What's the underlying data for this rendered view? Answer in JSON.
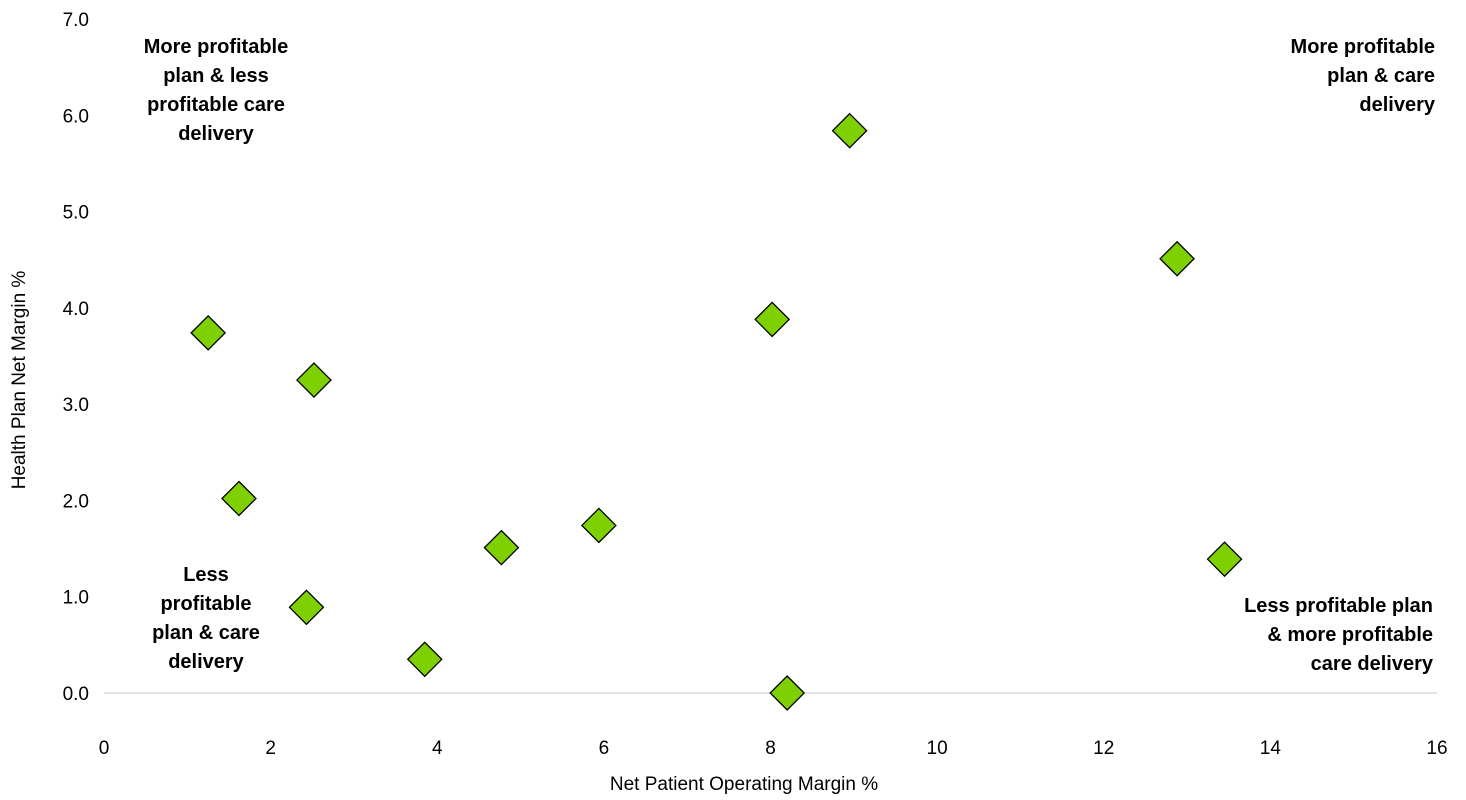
{
  "chart_data": {
    "type": "scatter",
    "title": "",
    "xlabel": "Net Patient Operating Margin %",
    "ylabel": "Health Plan Net Margin %",
    "xlim": [
      0,
      16
    ],
    "ylim": [
      0,
      7
    ],
    "x_ticks": [
      "0",
      "2",
      "4",
      "6",
      "8",
      "10",
      "12",
      "14",
      "16"
    ],
    "y_ticks": [
      "0.0",
      "1.0",
      "2.0",
      "3.0",
      "4.0",
      "5.0",
      "6.0",
      "7.0"
    ],
    "grid": false,
    "marker": "diamond",
    "marker_color": "#7FD000",
    "points": [
      {
        "x": 1.25,
        "y": 3.74
      },
      {
        "x": 1.62,
        "y": 2.02
      },
      {
        "x": 2.52,
        "y": 3.25
      },
      {
        "x": 2.43,
        "y": 0.89
      },
      {
        "x": 3.85,
        "y": 0.35
      },
      {
        "x": 4.77,
        "y": 1.51
      },
      {
        "x": 5.94,
        "y": 1.74
      },
      {
        "x": 8.02,
        "y": 3.88
      },
      {
        "x": 8.2,
        "y": 0.0
      },
      {
        "x": 8.95,
        "y": 5.84
      },
      {
        "x": 12.88,
        "y": 4.51
      },
      {
        "x": 13.45,
        "y": 1.39
      }
    ],
    "annotations": {
      "top_left": [
        "More profitable",
        "plan & less",
        "profitable care",
        "delivery"
      ],
      "top_right": [
        "More profitable",
        "plan & care",
        "delivery"
      ],
      "bottom_left": [
        "Less",
        "profitable",
        "plan & care",
        "delivery"
      ],
      "bottom_right": [
        "Less profitable plan",
        "& more profitable",
        "care delivery"
      ]
    }
  }
}
